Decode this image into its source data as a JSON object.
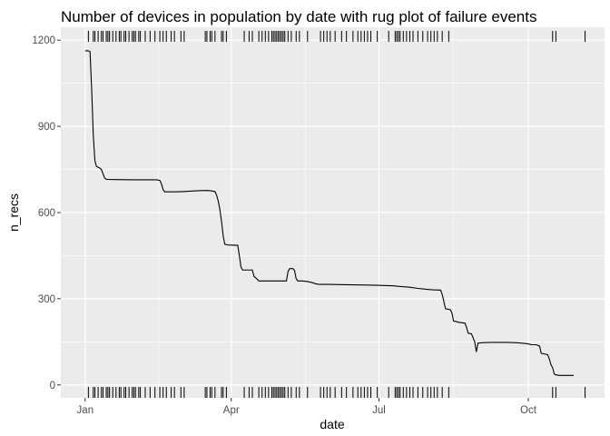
{
  "chart_data": {
    "type": "line",
    "title": "Number of devices in population by date with rug plot of failure events",
    "xlabel": "date",
    "ylabel": "n_recs",
    "x_ticks": [
      {
        "label": "Jan",
        "day": 0
      },
      {
        "label": "Apr",
        "day": 90
      },
      {
        "label": "Jul",
        "day": 181
      },
      {
        "label": "Oct",
        "day": 273
      }
    ],
    "y_ticks": [
      0,
      300,
      600,
      900,
      1200
    ],
    "xlim_day": [
      -15,
      320
    ],
    "ylim": [
      -45,
      1245
    ],
    "grid": true,
    "background": "#ebebeb",
    "grid_color": "#ffffff",
    "line_color": "#000000",
    "series": [
      {
        "points": [
          [
            0,
            1163
          ],
          [
            2,
            1163
          ],
          [
            3,
            1160
          ],
          [
            4,
            1030
          ],
          [
            5,
            870
          ],
          [
            6,
            780
          ],
          [
            7,
            760
          ],
          [
            9,
            755
          ],
          [
            10,
            750
          ],
          [
            11,
            735
          ],
          [
            12,
            720
          ],
          [
            13,
            716
          ],
          [
            15,
            715
          ],
          [
            30,
            714
          ],
          [
            44,
            714
          ],
          [
            46,
            712
          ],
          [
            47,
            700
          ],
          [
            48,
            680
          ],
          [
            49,
            672
          ],
          [
            55,
            672
          ],
          [
            60,
            673
          ],
          [
            70,
            676
          ],
          [
            75,
            677
          ],
          [
            77,
            676
          ],
          [
            80,
            673
          ],
          [
            81,
            660
          ],
          [
            82,
            640
          ],
          [
            83,
            610
          ],
          [
            84,
            570
          ],
          [
            85,
            520
          ],
          [
            86,
            490
          ],
          [
            88,
            487
          ],
          [
            94,
            486
          ],
          [
            95,
            450
          ],
          [
            96,
            410
          ],
          [
            97,
            400
          ],
          [
            103,
            400
          ],
          [
            104,
            378
          ],
          [
            106,
            368
          ],
          [
            107,
            362
          ],
          [
            115,
            362
          ],
          [
            124,
            362
          ],
          [
            125,
            395
          ],
          [
            126,
            405
          ],
          [
            128,
            405
          ],
          [
            129,
            398
          ],
          [
            130,
            370
          ],
          [
            131,
            362
          ],
          [
            134,
            362
          ],
          [
            137,
            360
          ],
          [
            140,
            356
          ],
          [
            142,
            352
          ],
          [
            144,
            350
          ],
          [
            150,
            350
          ],
          [
            160,
            349
          ],
          [
            170,
            348
          ],
          [
            180,
            347
          ],
          [
            190,
            345
          ],
          [
            195,
            342
          ],
          [
            200,
            340
          ],
          [
            205,
            336
          ],
          [
            210,
            333
          ],
          [
            214,
            331
          ],
          [
            219,
            330
          ],
          [
            220,
            315
          ],
          [
            221,
            290
          ],
          [
            222,
            265
          ],
          [
            225,
            262
          ],
          [
            226,
            250
          ],
          [
            227,
            222
          ],
          [
            229,
            220
          ],
          [
            230,
            218
          ],
          [
            234,
            215
          ],
          [
            235,
            200
          ],
          [
            236,
            180
          ],
          [
            238,
            178
          ],
          [
            240,
            150
          ],
          [
            241,
            115
          ],
          [
            242,
            145
          ],
          [
            244,
            147
          ],
          [
            250,
            148
          ],
          [
            260,
            148
          ],
          [
            266,
            147
          ],
          [
            270,
            145
          ],
          [
            273,
            143
          ],
          [
            275,
            140
          ],
          [
            278,
            140
          ],
          [
            280,
            135
          ],
          [
            281,
            110
          ],
          [
            283,
            108
          ],
          [
            285,
            105
          ],
          [
            286,
            90
          ],
          [
            287,
            70
          ],
          [
            288,
            60
          ],
          [
            289,
            38
          ],
          [
            290,
            35
          ],
          [
            292,
            33
          ],
          [
            301,
            33
          ]
        ]
      }
    ],
    "rug_days": [
      2,
      5,
      6,
      8,
      10,
      11,
      13,
      14,
      15,
      17,
      19,
      21,
      22,
      24,
      25,
      27,
      29,
      30,
      31,
      33,
      34,
      37,
      40,
      43,
      46,
      48,
      50,
      53,
      55,
      59,
      61,
      74,
      75,
      77,
      78,
      80,
      84,
      85,
      87,
      98,
      101,
      103,
      107,
      109,
      111,
      113,
      115,
      116,
      117,
      118,
      119,
      120,
      121,
      122,
      123,
      125,
      127,
      130,
      132,
      137,
      145,
      147,
      149,
      151,
      154,
      158,
      161,
      165,
      168,
      170,
      172,
      174,
      176,
      180,
      187,
      191,
      192,
      193,
      194,
      196,
      198,
      200,
      202,
      205,
      208,
      211,
      213,
      215,
      217,
      220,
      224,
      288,
      290,
      308
    ]
  }
}
